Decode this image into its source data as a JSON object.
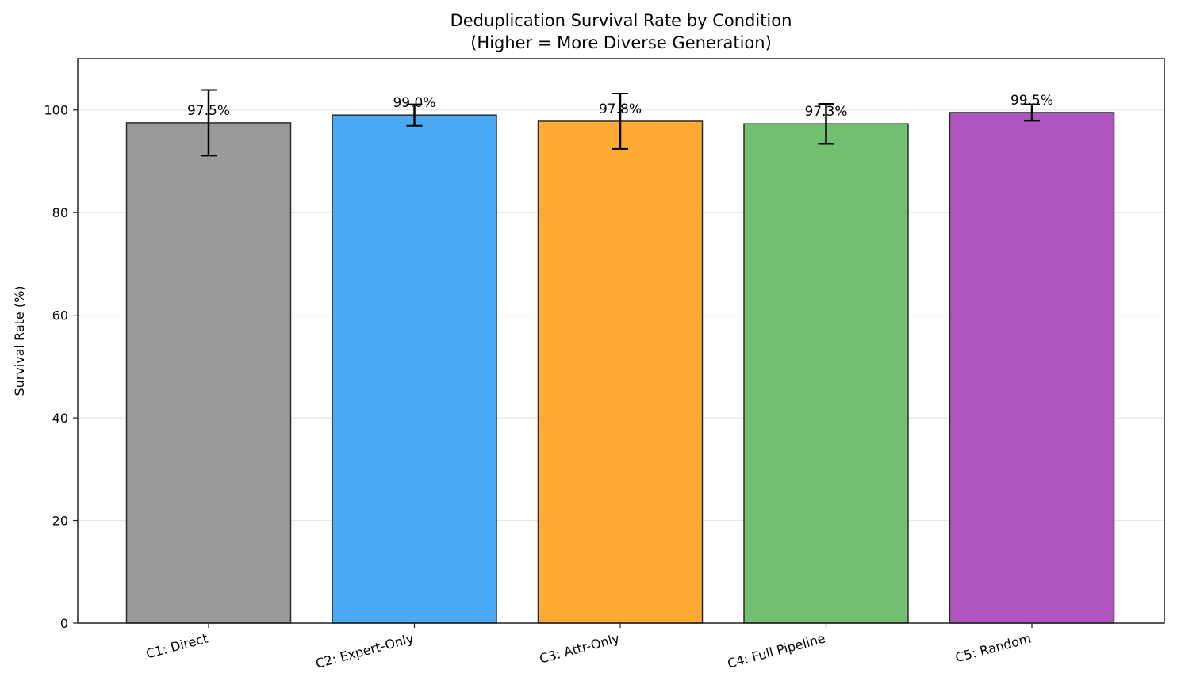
{
  "chart_data": {
    "type": "bar",
    "title": "Deduplication Survival Rate by Condition",
    "subtitle": "(Higher = More Diverse Generation)",
    "xlabel": "",
    "ylabel": "Survival Rate (%)",
    "ylim": [
      0,
      110
    ],
    "yticks": [
      0,
      20,
      40,
      60,
      80,
      100
    ],
    "grid": "y",
    "categories": [
      "C1: Direct",
      "C2: Expert-Only",
      "C3: Attr-Only",
      "C4: Full Pipeline",
      "C5: Random"
    ],
    "values": [
      97.5,
      99.0,
      97.8,
      97.3,
      99.5
    ],
    "errors": [
      6.4,
      2.1,
      5.4,
      3.9,
      1.6
    ],
    "data_labels": [
      "97.5%",
      "99.0%",
      "97.8%",
      "97.3%",
      "99.5%"
    ],
    "colors": [
      "#9a9a9a",
      "#4caaf5",
      "#ffab33",
      "#72bf72",
      "#b054bf"
    ],
    "edge_color": "#2b2b2b",
    "grid_color": "#e6e6e6"
  }
}
